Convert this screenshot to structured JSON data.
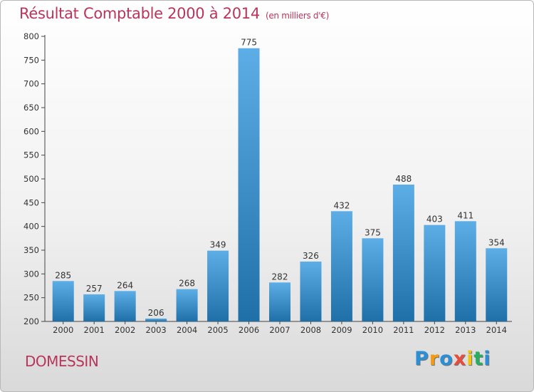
{
  "chart_data": {
    "type": "bar",
    "title": "Résultat Comptable 2000 à 2014",
    "subtitle": "(en milliers d'€)",
    "categories": [
      "2000",
      "2001",
      "2002",
      "2003",
      "2004",
      "2005",
      "2006",
      "2007",
      "2008",
      "2009",
      "2010",
      "2011",
      "2012",
      "2013",
      "2014"
    ],
    "values": [
      285,
      257,
      264,
      206,
      268,
      349,
      775,
      282,
      326,
      432,
      375,
      488,
      403,
      411,
      354
    ],
    "ylim": [
      200,
      800
    ],
    "yticks": [
      200,
      250,
      300,
      350,
      400,
      450,
      500,
      550,
      600,
      650,
      700,
      750,
      800
    ],
    "xlabel": "",
    "ylabel": "",
    "grid": false,
    "bar_color_light": "#5dade6",
    "bar_color_dark": "#1f6fa8"
  },
  "location": "DOMESSIN",
  "brand": {
    "letters": [
      "P",
      "r",
      "o",
      "x",
      "i",
      "t",
      "i"
    ],
    "colors": [
      "#2a8fd6",
      "#f39c12",
      "#2a8fd6",
      "#e84c3d",
      "#f1c40f",
      "#27ae60",
      "#2a8fd6"
    ]
  },
  "colors": {
    "accent": "#b9355a"
  }
}
